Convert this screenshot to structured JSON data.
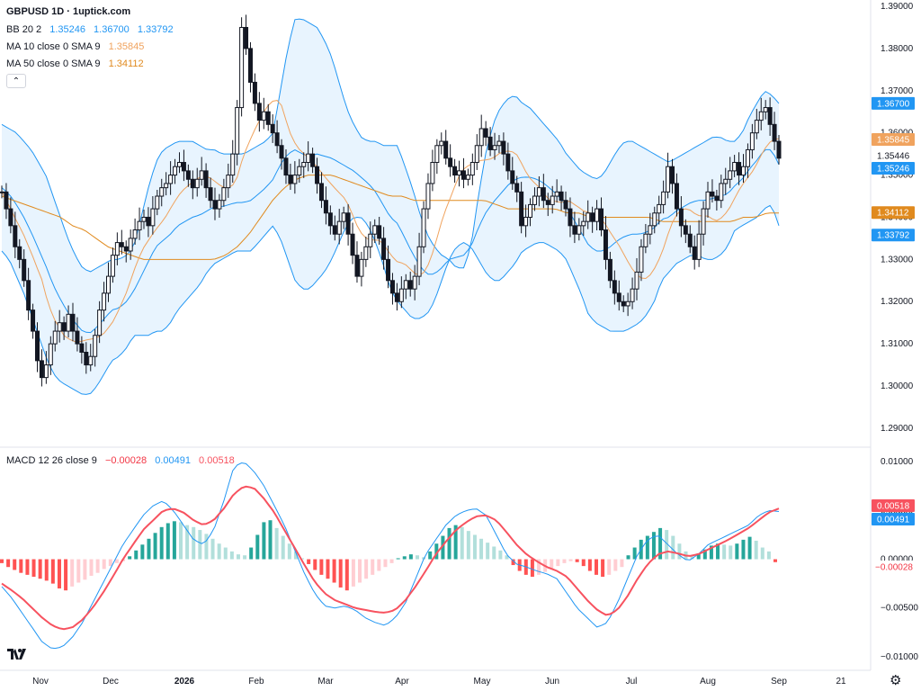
{
  "header": {
    "title": "GBPUSD 1D · 1uptick.com"
  },
  "legend": {
    "bb": {
      "label": "BB 20 2",
      "v1": "1.35246",
      "v2": "1.36700",
      "v3": "1.33792",
      "color": "#2196f3"
    },
    "ma10": {
      "label": "MA 10 close 0 SMA 9",
      "value": "1.35845",
      "color": "#f0a35e"
    },
    "ma50": {
      "label": "MA 50 close 0 SMA 9",
      "value": "1.34112",
      "color": "#e08a1e"
    },
    "macd": {
      "label": "MACD 12 26 close 9",
      "v1": "−0.00028",
      "v2": "0.00491",
      "v3": "0.00518",
      "hist_color": "#f23645",
      "macd_color": "#2196f3",
      "signal_color": "#f7525f"
    }
  },
  "icons": {
    "collapse": "chevron-up-icon",
    "settings": "gear-icon",
    "logo": "tradingview-logo-icon"
  },
  "chart_data": [
    {
      "type": "candlestick",
      "title": "GBPUSD 1D",
      "x_ticks": [
        "Nov",
        "Dec",
        "2026",
        "Feb",
        "Mar",
        "Apr",
        "May",
        "Jun",
        "Jul",
        "Aug",
        "Sep",
        "21"
      ],
      "y_ticks": [
        "1.39000",
        "1.38000",
        "1.37000",
        "1.36000",
        "1.35000",
        "1.34000",
        "1.33000",
        "1.32000",
        "1.31000",
        "1.30000",
        "1.29000"
      ],
      "ylim": [
        1.2855,
        1.3915
      ],
      "last_close": "1.35446",
      "price_labels": [
        {
          "value": "1.36700",
          "color": "#2196f3"
        },
        {
          "value": "1.35845",
          "color": "#f0a35e"
        },
        {
          "value": "1.35246",
          "color": "#2196f3"
        },
        {
          "value": "1.34112",
          "color": "#e08a1e"
        },
        {
          "value": "1.33792",
          "color": "#2196f3"
        }
      ],
      "close_series": [
        1.346,
        1.342,
        1.338,
        1.333,
        1.33,
        1.325,
        1.318,
        1.313,
        1.306,
        1.302,
        1.305,
        1.31,
        1.313,
        1.315,
        1.313,
        1.317,
        1.313,
        1.31,
        1.308,
        1.305,
        1.307,
        1.312,
        1.318,
        1.322,
        1.326,
        1.331,
        1.334,
        1.333,
        1.332,
        1.335,
        1.337,
        1.339,
        1.34,
        1.338,
        1.342,
        1.345,
        1.347,
        1.348,
        1.35,
        1.352,
        1.353,
        1.351,
        1.349,
        1.347,
        1.349,
        1.351,
        1.347,
        1.344,
        1.342,
        1.344,
        1.347,
        1.35,
        1.355,
        1.366,
        1.385,
        1.38,
        1.372,
        1.367,
        1.363,
        1.365,
        1.362,
        1.36,
        1.357,
        1.354,
        1.35,
        1.348,
        1.35,
        1.352,
        1.353,
        1.355,
        1.352,
        1.348,
        1.344,
        1.341,
        1.338,
        1.336,
        1.339,
        1.341,
        1.336,
        1.331,
        1.326,
        1.33,
        1.333,
        1.336,
        1.338,
        1.335,
        1.33,
        1.325,
        1.322,
        1.32,
        1.323,
        1.325,
        1.323,
        1.326,
        1.333,
        1.342,
        1.348,
        1.353,
        1.357,
        1.358,
        1.354,
        1.352,
        1.35,
        1.351,
        1.349,
        1.35,
        1.353,
        1.357,
        1.361,
        1.359,
        1.356,
        1.357,
        1.358,
        1.355,
        1.351,
        1.348,
        1.346,
        1.338,
        1.34,
        1.343,
        1.345,
        1.347,
        1.344,
        1.343,
        1.345,
        1.346,
        1.344,
        1.342,
        1.338,
        1.336,
        1.338,
        1.339,
        1.341,
        1.339,
        1.342,
        1.337,
        1.33,
        1.325,
        1.322,
        1.32,
        1.319,
        1.32,
        1.323,
        1.327,
        1.333,
        1.336,
        1.338,
        1.341,
        1.343,
        1.346,
        1.352,
        1.348,
        1.342,
        1.338,
        1.336,
        1.333,
        1.33,
        1.336,
        1.342,
        1.346,
        1.345,
        1.344,
        1.348,
        1.349,
        1.351,
        1.353,
        1.35,
        1.352,
        1.356,
        1.36,
        1.363,
        1.365,
        1.366,
        1.362,
        1.358,
        1.354
      ],
      "bb_upper": [
        1.362,
        1.361,
        1.36,
        1.358,
        1.356,
        1.353,
        1.35,
        1.345,
        1.34,
        1.335,
        1.331,
        1.328,
        1.327,
        1.328,
        1.329,
        1.33,
        1.33,
        1.331,
        1.333,
        1.34,
        1.347,
        1.353,
        1.356,
        1.357,
        1.358,
        1.358,
        1.358,
        1.357,
        1.356,
        1.356,
        1.355,
        1.355,
        1.355,
        1.355,
        1.356,
        1.357,
        1.358,
        1.36,
        1.37,
        1.38,
        1.387,
        1.387,
        1.386,
        1.385,
        1.382,
        1.378,
        1.372,
        1.366,
        1.362,
        1.359,
        1.358,
        1.358,
        1.357,
        1.357,
        1.357,
        1.352,
        1.347,
        1.341,
        1.336,
        1.333,
        1.331,
        1.33,
        1.328,
        1.328,
        1.333,
        1.345,
        1.355,
        1.362,
        1.366,
        1.368,
        1.369,
        1.367,
        1.366,
        1.364,
        1.362,
        1.36,
        1.358,
        1.355,
        1.353,
        1.351,
        1.35,
        1.349,
        1.35,
        1.353,
        1.356,
        1.358,
        1.358,
        1.357,
        1.356,
        1.355,
        1.354,
        1.353,
        1.354,
        1.355,
        1.356,
        1.357,
        1.358,
        1.359,
        1.359,
        1.358,
        1.358,
        1.36,
        1.364,
        1.367,
        1.37,
        1.369,
        1.367
      ],
      "bb_lower": [
        1.332,
        1.33,
        1.326,
        1.322,
        1.317,
        1.312,
        1.307,
        1.303,
        1.301,
        1.3,
        1.299,
        1.298,
        1.298,
        1.3,
        1.303,
        1.306,
        1.307,
        1.309,
        1.312,
        1.312,
        1.312,
        1.313,
        1.313,
        1.315,
        1.318,
        1.32,
        1.322,
        1.324,
        1.327,
        1.329,
        1.33,
        1.331,
        1.332,
        1.332,
        1.332,
        1.334,
        1.336,
        1.338,
        1.335,
        1.33,
        1.325,
        1.323,
        1.323,
        1.325,
        1.327,
        1.33,
        1.334,
        1.338,
        1.34,
        1.34,
        1.338,
        1.334,
        1.329,
        1.323,
        1.32,
        1.318,
        1.316,
        1.316,
        1.317,
        1.32,
        1.325,
        1.33,
        1.333,
        1.334,
        1.333,
        1.33,
        1.327,
        1.325,
        1.325,
        1.327,
        1.329,
        1.332,
        1.333,
        1.334,
        1.334,
        1.333,
        1.332,
        1.33,
        1.326,
        1.322,
        1.317,
        1.315,
        1.314,
        1.313,
        1.313,
        1.313,
        1.314,
        1.315,
        1.317,
        1.32,
        1.325,
        1.327,
        1.329,
        1.33,
        1.331,
        1.331,
        1.33,
        1.33,
        1.331,
        1.333,
        1.337,
        1.338,
        1.339,
        1.34,
        1.342,
        1.343,
        1.338
      ],
      "ma50": [
        1.345,
        1.344,
        1.343,
        1.342,
        1.341,
        1.34,
        1.338,
        1.337,
        1.335,
        1.333,
        1.332,
        1.331,
        1.33,
        1.33,
        1.33,
        1.33,
        1.33,
        1.33,
        1.33,
        1.331,
        1.333,
        1.336,
        1.34,
        1.344,
        1.347,
        1.349,
        1.35,
        1.35,
        1.35,
        1.349,
        1.348,
        1.347,
        1.346,
        1.345,
        1.345,
        1.344,
        1.344,
        1.344,
        1.344,
        1.344,
        1.344,
        1.344,
        1.343,
        1.342,
        1.342,
        1.342,
        1.342,
        1.342,
        1.341,
        1.341,
        1.34,
        1.34,
        1.34,
        1.34,
        1.34,
        1.34,
        1.339,
        1.339,
        1.339,
        1.339,
        1.339,
        1.339,
        1.339,
        1.34,
        1.34,
        1.341,
        1.341
      ]
    },
    {
      "type": "macd",
      "title": "MACD 12 26 close 9",
      "y_ticks": [
        "0.01000",
        "0.00500",
        "0.00000",
        "−0.00500",
        "−0.01000"
      ],
      "ylim": [
        -0.0114,
        0.0115
      ],
      "value_labels": [
        {
          "value": "0.00518",
          "color": "#f7525f"
        },
        {
          "value": "0.00491",
          "color": "#2196f3"
        },
        {
          "value": "−0.00028",
          "color": "#f23645"
        }
      ],
      "histogram": [
        -0.0004,
        -0.0008,
        -0.0011,
        -0.0014,
        -0.0016,
        -0.0018,
        -0.002,
        -0.0022,
        -0.0025,
        -0.003,
        -0.0032,
        -0.0028,
        -0.0024,
        -0.0021,
        -0.0017,
        -0.0014,
        -0.001,
        -0.0007,
        -0.0004,
        -0.0002,
        0.0003,
        0.0009,
        0.0015,
        0.0021,
        0.0027,
        0.0033,
        0.0037,
        0.0039,
        0.0038,
        0.0035,
        0.0033,
        0.003,
        0.0026,
        0.0021,
        0.0016,
        0.0012,
        0.0008,
        0.0005,
        0.0004,
        0.0012,
        0.0025,
        0.0038,
        0.004,
        0.0032,
        0.0024,
        0.0016,
        0.0008,
        0.0001,
        -0.0005,
        -0.0011,
        -0.0016,
        -0.002,
        -0.0024,
        -0.0029,
        -0.0032,
        -0.0028,
        -0.0024,
        -0.002,
        -0.0016,
        -0.0012,
        -0.0008,
        -0.0004,
        0.0001,
        0.0003,
        0.0005,
        0.0004,
        0.0002,
        0.0008,
        0.0016,
        0.0024,
        0.0032,
        0.0035,
        0.0033,
        0.0029,
        0.0025,
        0.0021,
        0.0017,
        0.0013,
        0.0009,
        0.0004,
        -0.0006,
        -0.0012,
        -0.0016,
        -0.0018,
        -0.0016,
        -0.0013,
        -0.001,
        -0.0007,
        -0.0004,
        -0.0002,
        -0.0003,
        -0.0007,
        -0.0012,
        -0.0016,
        -0.0018,
        -0.0016,
        -0.0012,
        -0.0008,
        0.0004,
        0.0012,
        0.002,
        0.0024,
        0.0028,
        0.0032,
        0.003,
        0.0024,
        0.0016,
        0.0008,
        0.0003,
        0.0006,
        0.001,
        0.0014,
        0.0016,
        0.0015,
        0.0014,
        0.0016,
        0.002,
        0.0023,
        0.0019,
        0.0012,
        0.0008,
        -0.0003
      ],
      "macd": [
        -0.0028,
        -0.004,
        -0.0055,
        -0.007,
        -0.0085,
        -0.0092,
        -0.009,
        -0.008,
        -0.0065,
        -0.0045,
        -0.0025,
        -0.0005,
        0.0015,
        0.003,
        0.0045,
        0.0055,
        0.006,
        0.005,
        0.0035,
        0.002,
        0.0015,
        0.003,
        0.006,
        0.0095,
        0.01,
        0.009,
        0.0075,
        0.0055,
        0.0035,
        0.001,
        -0.0015,
        -0.0035,
        -0.0048,
        -0.005,
        -0.0048,
        -0.0052,
        -0.006,
        -0.0065,
        -0.0068,
        -0.006,
        -0.0045,
        -0.002,
        0.0005,
        0.002,
        0.0035,
        0.0045,
        0.005,
        0.0052,
        0.0045,
        0.0025,
        0.0005,
        -0.0005,
        -0.0008,
        -0.0012,
        -0.0015,
        -0.002,
        -0.0035,
        -0.005,
        -0.006,
        -0.007,
        -0.0065,
        -0.0045,
        -0.002,
        0.0005,
        0.002,
        0.0025,
        0.0015,
        0.0005,
        -0.0002,
        0.0005,
        0.0015,
        0.002,
        0.0025,
        0.003,
        0.0035,
        0.0045,
        0.005,
        0.0049
      ],
      "signal": [
        -0.0025,
        -0.0032,
        -0.004,
        -0.005,
        -0.006,
        -0.0068,
        -0.0072,
        -0.007,
        -0.0062,
        -0.005,
        -0.0035,
        -0.0018,
        0.0,
        0.0015,
        0.003,
        0.004,
        0.005,
        0.0052,
        0.0048,
        0.004,
        0.0035,
        0.004,
        0.0052,
        0.0067,
        0.0075,
        0.0073,
        0.0062,
        0.0048,
        0.003,
        0.0012,
        -0.0006,
        -0.0023,
        -0.0035,
        -0.0042,
        -0.0046,
        -0.005,
        -0.0052,
        -0.0054,
        -0.0055,
        -0.0052,
        -0.0042,
        -0.0028,
        -0.0012,
        0.0005,
        0.0018,
        0.003,
        0.0038,
        0.0044,
        0.0045,
        0.004,
        0.0028,
        0.0015,
        0.0005,
        -0.0002,
        -0.0008,
        -0.0012,
        -0.0018,
        -0.003,
        -0.0042,
        -0.0052,
        -0.0058,
        -0.0052,
        -0.0038,
        -0.002,
        -0.0005,
        0.0005,
        0.0008,
        0.0006,
        0.0003,
        0.0005,
        0.001,
        0.0015,
        0.002,
        0.0026,
        0.0032,
        0.004,
        0.0048,
        0.0052
      ]
    }
  ]
}
